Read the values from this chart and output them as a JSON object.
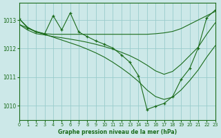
{
  "title": "Graphe pression niveau de la mer (hPa)",
  "bg_color": "#cce8e8",
  "grid_color": "#99cccc",
  "line_color": "#1a6b1a",
  "xlim": [
    0,
    23
  ],
  "ylim": [
    1009.5,
    1013.6
  ],
  "yticks": [
    1010,
    1011,
    1012,
    1013
  ],
  "xticks": [
    0,
    1,
    2,
    3,
    4,
    5,
    6,
    7,
    8,
    9,
    10,
    11,
    12,
    13,
    14,
    15,
    16,
    17,
    18,
    19,
    20,
    21,
    22,
    23
  ],
  "series": {
    "line_top_flat": {
      "x": [
        0,
        1,
        2,
        3,
        4,
        5,
        6,
        7,
        8,
        9,
        10,
        11,
        12,
        13,
        14,
        15,
        16,
        17,
        18,
        19,
        20,
        21,
        22,
        23
      ],
      "y": [
        1013.05,
        1012.75,
        1012.58,
        1012.52,
        1012.5,
        1012.5,
        1012.5,
        1012.5,
        1012.5,
        1012.5,
        1012.5,
        1012.5,
        1012.5,
        1012.5,
        1012.5,
        1012.5,
        1012.52,
        1012.55,
        1012.6,
        1012.7,
        1012.85,
        1013.0,
        1013.15,
        1013.3
      ]
    },
    "line_mid_smooth": {
      "x": [
        0,
        1,
        2,
        3,
        4,
        5,
        6,
        7,
        8,
        9,
        10,
        11,
        12,
        13,
        14,
        15,
        16,
        17,
        18,
        19,
        20,
        21,
        22,
        23
      ],
      "y": [
        1012.85,
        1012.65,
        1012.52,
        1012.48,
        1012.42,
        1012.38,
        1012.33,
        1012.28,
        1012.22,
        1012.15,
        1012.07,
        1011.98,
        1011.87,
        1011.75,
        1011.6,
        1011.42,
        1011.22,
        1011.1,
        1011.2,
        1011.45,
        1011.75,
        1012.05,
        1012.5,
        1012.9
      ]
    },
    "line_jagged": {
      "x": [
        0,
        1,
        2,
        3,
        4,
        5,
        6,
        7,
        8,
        9,
        10,
        11,
        12,
        13,
        14,
        15,
        16,
        17,
        18,
        19,
        20,
        21,
        22,
        23
      ],
      "y": [
        1013.05,
        1012.72,
        1012.6,
        1012.52,
        1013.15,
        1012.65,
        1013.25,
        1012.58,
        1012.42,
        1012.27,
        1012.15,
        1012.02,
        1011.78,
        1011.52,
        1011.05,
        1009.87,
        1009.98,
        1010.08,
        1010.32,
        1010.92,
        1011.3,
        1012.02,
        1013.08,
        1013.35
      ]
    },
    "line_bottom_smooth": {
      "x": [
        0,
        1,
        2,
        3,
        4,
        5,
        6,
        7,
        8,
        9,
        10,
        11,
        12,
        13,
        14,
        15,
        16,
        17,
        18,
        19,
        20,
        21,
        22,
        23
      ],
      "y": [
        1012.85,
        1012.72,
        1012.58,
        1012.5,
        1012.4,
        1012.3,
        1012.2,
        1012.1,
        1011.98,
        1011.85,
        1011.7,
        1011.52,
        1011.32,
        1011.1,
        1010.85,
        1010.55,
        1010.32,
        1010.22,
        1010.3,
        1010.55,
        1010.88,
        1011.25,
        1011.7,
        1012.1
      ]
    }
  }
}
